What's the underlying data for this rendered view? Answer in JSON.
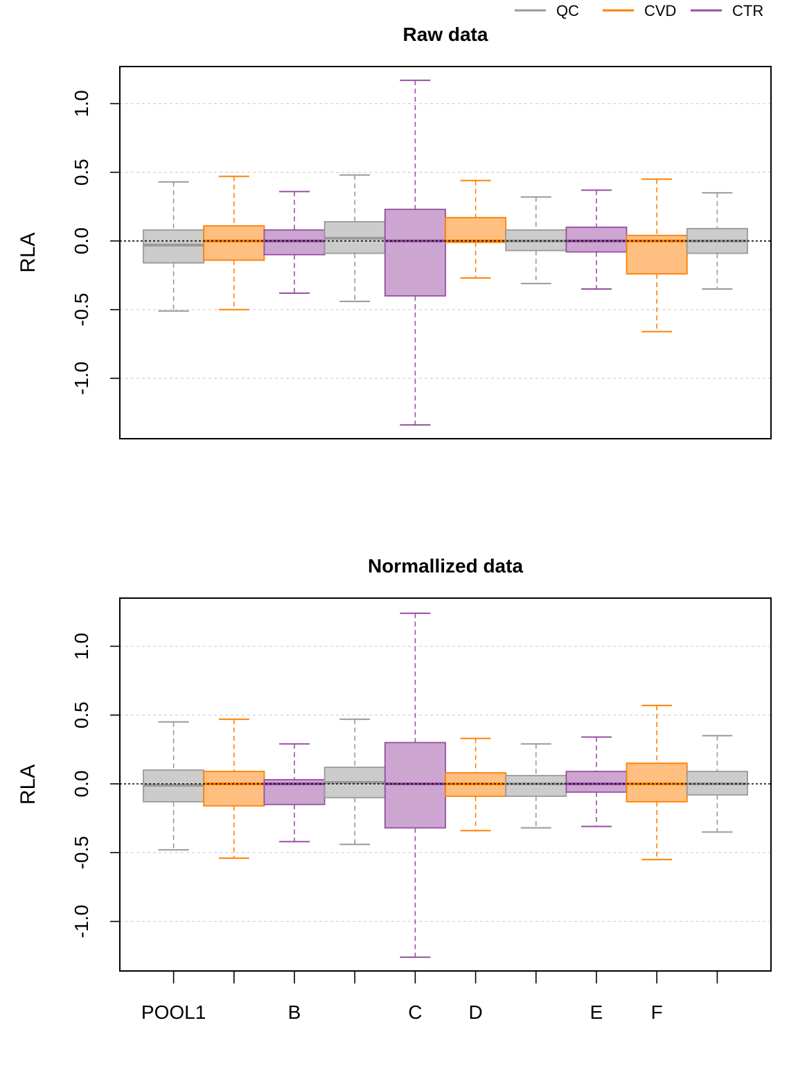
{
  "legend": [
    {
      "name": "QC",
      "color": "#999999"
    },
    {
      "name": "CVD",
      "color": "#FF7F00"
    },
    {
      "name": "CTR",
      "color": "#984EA3"
    }
  ],
  "colors": {
    "QC": {
      "stroke": "#999999",
      "fill": "#CCCCCC"
    },
    "CVD": {
      "stroke": "#FF7F00",
      "fill": "#FFBF80"
    },
    "CTR": {
      "stroke": "#984EA3",
      "fill": "#CCA6D1"
    }
  },
  "x_tick_labels": [
    "POOL1",
    "",
    "B",
    "",
    "C",
    "D",
    "",
    "E",
    "F",
    ""
  ],
  "chart_data": [
    {
      "type": "boxplot",
      "title": "Raw data",
      "ylabel": "RLA",
      "ylim": [
        -1.44,
        1.27
      ],
      "yticks": [
        -1.0,
        -0.5,
        0.0,
        0.5,
        1.0
      ],
      "ytick_labels": [
        "-1.0",
        "-0.5",
        "0.0",
        "0.5",
        "1.0"
      ],
      "grid": true,
      "reference_line": 0,
      "boxes": [
        {
          "group": "QC",
          "whisker_low": -0.51,
          "q1": -0.16,
          "median": -0.03,
          "q3": 0.08,
          "whisker_high": 0.43
        },
        {
          "group": "CVD",
          "whisker_low": -0.5,
          "q1": -0.14,
          "median": 0.0,
          "q3": 0.11,
          "whisker_high": 0.47
        },
        {
          "group": "CTR",
          "whisker_low": -0.38,
          "q1": -0.1,
          "median": 0.0,
          "q3": 0.08,
          "whisker_high": 0.36
        },
        {
          "group": "QC",
          "whisker_low": -0.44,
          "q1": -0.09,
          "median": 0.02,
          "q3": 0.14,
          "whisker_high": 0.48
        },
        {
          "group": "CTR",
          "whisker_low": -1.34,
          "q1": -0.4,
          "median": 0.0,
          "q3": 0.23,
          "whisker_high": 1.17
        },
        {
          "group": "CVD",
          "whisker_low": -0.27,
          "q1": -0.01,
          "median": 0.0,
          "q3": 0.17,
          "whisker_high": 0.44
        },
        {
          "group": "QC",
          "whisker_low": -0.31,
          "q1": -0.07,
          "median": 0.0,
          "q3": 0.08,
          "whisker_high": 0.32
        },
        {
          "group": "CTR",
          "whisker_low": -0.35,
          "q1": -0.08,
          "median": 0.0,
          "q3": 0.1,
          "whisker_high": 0.37
        },
        {
          "group": "CVD",
          "whisker_low": -0.66,
          "q1": -0.24,
          "median": 0.0,
          "q3": 0.04,
          "whisker_high": 0.45
        },
        {
          "group": "QC",
          "whisker_low": -0.35,
          "q1": -0.09,
          "median": 0.0,
          "q3": 0.09,
          "whisker_high": 0.35
        }
      ]
    },
    {
      "type": "boxplot",
      "title": "Normallized data",
      "ylabel": "RLA",
      "ylim": [
        -1.36,
        1.35
      ],
      "yticks": [
        -1.0,
        -0.5,
        0.0,
        0.5,
        1.0
      ],
      "ytick_labels": [
        "-1.0",
        "-0.5",
        "0.0",
        "0.5",
        "1.0"
      ],
      "grid": true,
      "reference_line": 0,
      "boxes": [
        {
          "group": "QC",
          "whisker_low": -0.48,
          "q1": -0.13,
          "median": -0.01,
          "q3": 0.1,
          "whisker_high": 0.45
        },
        {
          "group": "CVD",
          "whisker_low": -0.54,
          "q1": -0.16,
          "median": 0.0,
          "q3": 0.09,
          "whisker_high": 0.47
        },
        {
          "group": "CTR",
          "whisker_low": -0.42,
          "q1": -0.15,
          "median": 0.0,
          "q3": 0.03,
          "whisker_high": 0.29
        },
        {
          "group": "QC",
          "whisker_low": -0.44,
          "q1": -0.1,
          "median": 0.01,
          "q3": 0.12,
          "whisker_high": 0.47
        },
        {
          "group": "CTR",
          "whisker_low": -1.26,
          "q1": -0.32,
          "median": 0.0,
          "q3": 0.3,
          "whisker_high": 1.24
        },
        {
          "group": "CVD",
          "whisker_low": -0.34,
          "q1": -0.09,
          "median": 0.0,
          "q3": 0.08,
          "whisker_high": 0.33
        },
        {
          "group": "QC",
          "whisker_low": -0.32,
          "q1": -0.09,
          "median": 0.0,
          "q3": 0.06,
          "whisker_high": 0.29
        },
        {
          "group": "CTR",
          "whisker_low": -0.31,
          "q1": -0.06,
          "median": 0.0,
          "q3": 0.09,
          "whisker_high": 0.34
        },
        {
          "group": "CVD",
          "whisker_low": -0.55,
          "q1": -0.13,
          "median": 0.0,
          "q3": 0.15,
          "whisker_high": 0.57
        },
        {
          "group": "QC",
          "whisker_low": -0.35,
          "q1": -0.08,
          "median": 0.0,
          "q3": 0.09,
          "whisker_high": 0.35
        }
      ]
    }
  ]
}
